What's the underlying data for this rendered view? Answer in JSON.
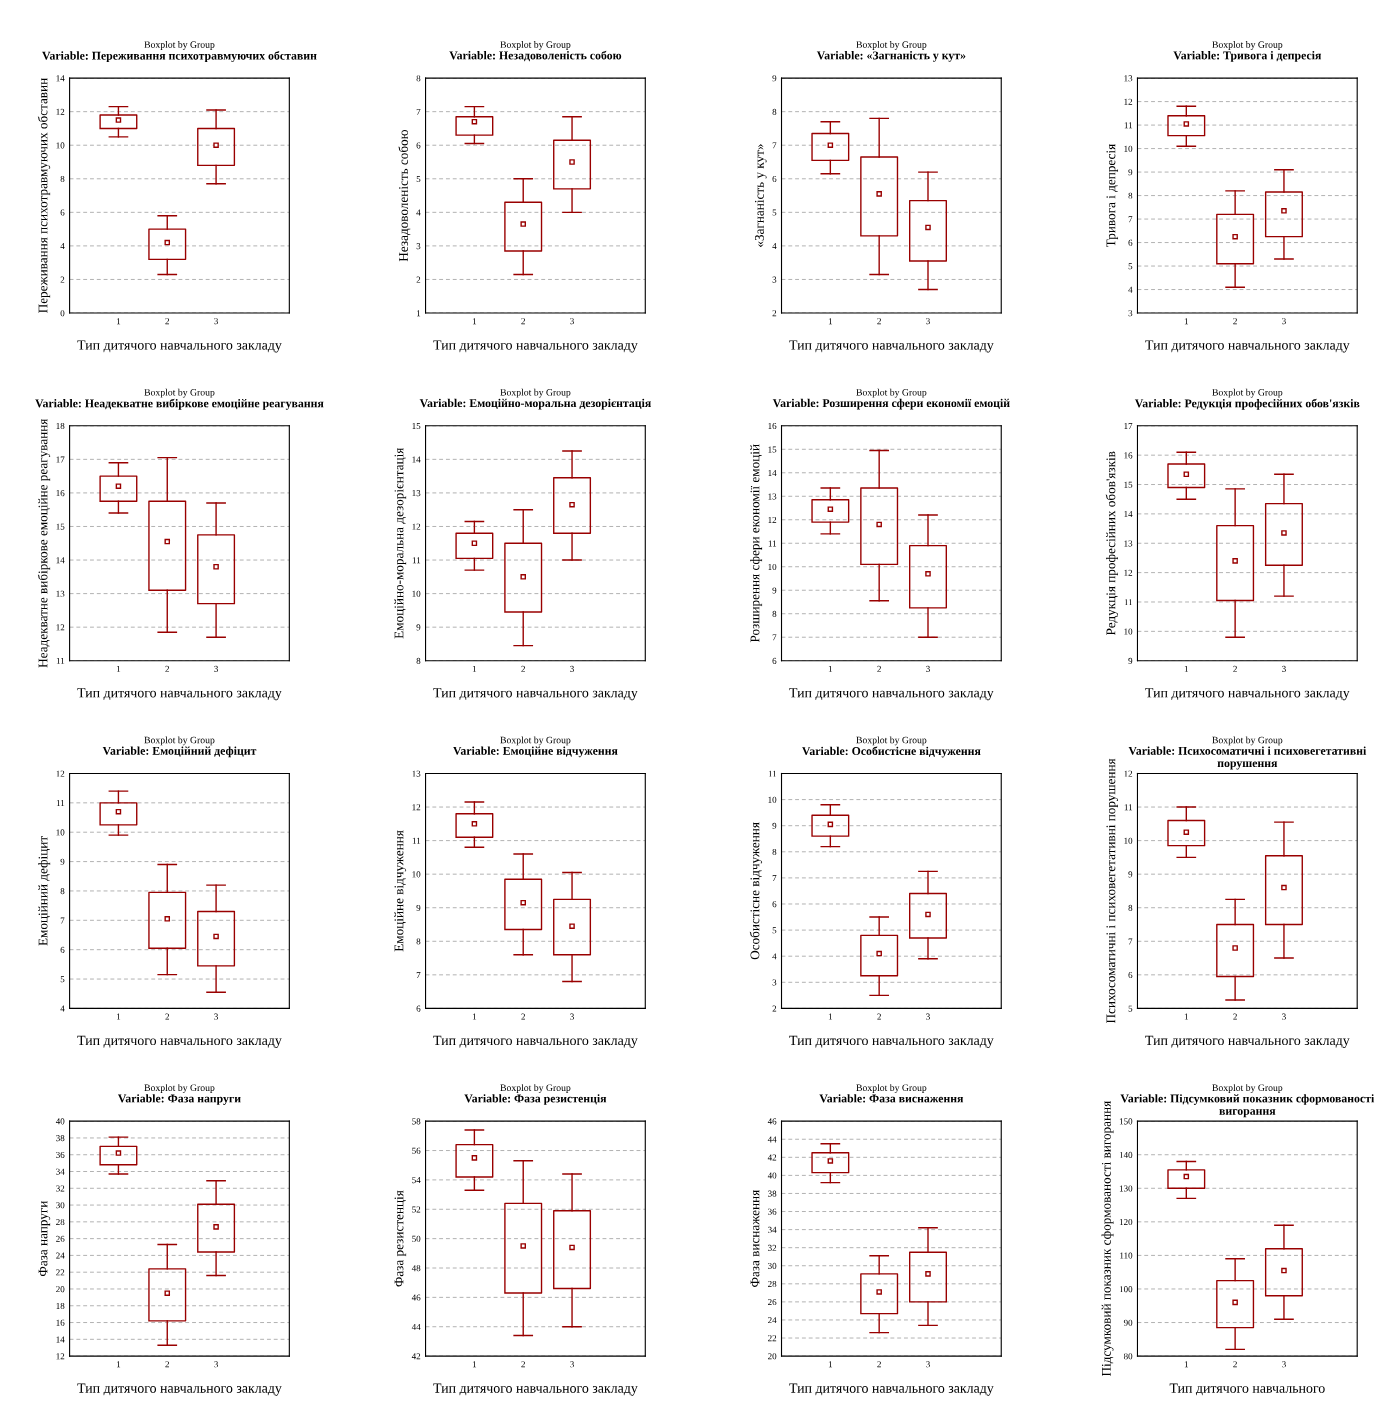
{
  "chart_data": [
    {
      "type": "box",
      "title": "Boxplot by Group",
      "subtitle": "Variable: Переживання психотравмуючих обставин",
      "xlabel": "Тип дитячого навчального закладу",
      "ylabel": "Переживання психотравмуючих обставин",
      "x": [
        1,
        2,
        3
      ],
      "xlim": [
        0,
        4.5
      ],
      "xticks": [
        1,
        2,
        3
      ],
      "ylim": [
        0,
        14
      ],
      "yticks": [
        0,
        2,
        4,
        6,
        8,
        10,
        12,
        14
      ],
      "grid": "y",
      "color": "#990000",
      "boxes": [
        {
          "low": 10.5,
          "q1": 11.0,
          "median": 11.5,
          "q3": 11.8,
          "high": 12.3
        },
        {
          "low": 2.3,
          "q1": 3.2,
          "median": 4.2,
          "q3": 5.0,
          "high": 5.8
        },
        {
          "low": 7.7,
          "q1": 8.8,
          "median": 10.0,
          "q3": 11.0,
          "high": 12.1
        }
      ]
    },
    {
      "type": "box",
      "title": "Boxplot by Group",
      "subtitle": "Variable: Незадоволеність собою",
      "xlabel": "Тип дитячого навчального закладу",
      "ylabel": "Незадоволеність собою",
      "x": [
        1,
        2,
        3
      ],
      "xlim": [
        0,
        4.5
      ],
      "xticks": [
        1,
        2,
        3
      ],
      "ylim": [
        1,
        8
      ],
      "yticks": [
        1,
        2,
        3,
        4,
        5,
        6,
        7,
        8
      ],
      "grid": "y",
      "color": "#990000",
      "boxes": [
        {
          "low": 6.05,
          "q1": 6.3,
          "median": 6.7,
          "q3": 6.85,
          "high": 7.15
        },
        {
          "low": 2.15,
          "q1": 2.85,
          "median": 3.65,
          "q3": 4.3,
          "high": 5.0
        },
        {
          "low": 4.0,
          "q1": 4.7,
          "median": 5.5,
          "q3": 6.15,
          "high": 6.85
        }
      ]
    },
    {
      "type": "box",
      "title": "Boxplot by Group",
      "subtitle": "Variable: «Загнаність у кут»",
      "xlabel": "Тип дитячого навчального закладу",
      "ylabel": "«Загнаність у кут»",
      "x": [
        1,
        2,
        3
      ],
      "xlim": [
        0,
        4.5
      ],
      "xticks": [
        1,
        2,
        3
      ],
      "ylim": [
        2,
        9
      ],
      "yticks": [
        2,
        3,
        4,
        5,
        6,
        7,
        8,
        9
      ],
      "grid": "y",
      "color": "#990000",
      "boxes": [
        {
          "low": 6.15,
          "q1": 6.55,
          "median": 7.0,
          "q3": 7.35,
          "high": 7.7
        },
        {
          "low": 3.15,
          "q1": 4.3,
          "median": 5.55,
          "q3": 6.65,
          "high": 7.8
        },
        {
          "low": 2.7,
          "q1": 3.55,
          "median": 4.55,
          "q3": 5.35,
          "high": 6.2
        }
      ]
    },
    {
      "type": "box",
      "title": "Boxplot by Group",
      "subtitle": "Variable: Тривога і депресія",
      "xlabel": "Тип дитячого навчального закладу",
      "ylabel": "Тривога і депресія",
      "x": [
        1,
        2,
        3
      ],
      "xlim": [
        0,
        4.5
      ],
      "xticks": [
        1,
        2,
        3
      ],
      "ylim": [
        3,
        13
      ],
      "yticks": [
        3,
        4,
        5,
        6,
        7,
        8,
        9,
        10,
        11,
        12,
        13
      ],
      "grid": "y",
      "color": "#990000",
      "boxes": [
        {
          "low": 10.1,
          "q1": 10.55,
          "median": 11.05,
          "q3": 11.4,
          "high": 11.8
        },
        {
          "low": 4.1,
          "q1": 5.1,
          "median": 6.25,
          "q3": 7.2,
          "high": 8.2
        },
        {
          "low": 5.3,
          "q1": 6.25,
          "median": 7.35,
          "q3": 8.15,
          "high": 9.1
        }
      ]
    },
    {
      "type": "box",
      "title": "Boxplot by Group",
      "subtitle": "Variable: Неадекватне вибіркове емоційне реагування",
      "xlabel": "Тип дитячого навчального закладу",
      "ylabel": "Неадекватне вибіркове емоційне реагування",
      "x": [
        1,
        2,
        3
      ],
      "xlim": [
        0,
        4.5
      ],
      "xticks": [
        1,
        2,
        3
      ],
      "ylim": [
        11,
        18
      ],
      "yticks": [
        11,
        12,
        13,
        14,
        15,
        16,
        17,
        18
      ],
      "grid": "y",
      "color": "#990000",
      "boxes": [
        {
          "low": 15.4,
          "q1": 15.75,
          "median": 16.2,
          "q3": 16.5,
          "high": 16.9
        },
        {
          "low": 11.85,
          "q1": 13.1,
          "median": 14.55,
          "q3": 15.75,
          "high": 17.05
        },
        {
          "low": 11.7,
          "q1": 12.7,
          "median": 13.8,
          "q3": 14.75,
          "high": 15.7
        }
      ]
    },
    {
      "type": "box",
      "title": "Boxplot by Group",
      "subtitle": "Variable: Емоційно-моральна дезорієнтація",
      "xlabel": "Тип дитячого навчального закладу",
      "ylabel": "Емоційно-моральна дезорієнтація",
      "x": [
        1,
        2,
        3
      ],
      "xlim": [
        0,
        4.5
      ],
      "xticks": [
        1,
        2,
        3
      ],
      "ylim": [
        8,
        15
      ],
      "yticks": [
        8,
        9,
        10,
        11,
        12,
        13,
        14,
        15
      ],
      "grid": "y",
      "color": "#990000",
      "boxes": [
        {
          "low": 10.7,
          "q1": 11.05,
          "median": 11.5,
          "q3": 11.8,
          "high": 12.15
        },
        {
          "low": 8.45,
          "q1": 9.45,
          "median": 10.5,
          "q3": 11.5,
          "high": 12.5
        },
        {
          "low": 11.0,
          "q1": 11.8,
          "median": 12.65,
          "q3": 13.45,
          "high": 14.25
        }
      ]
    },
    {
      "type": "box",
      "title": "Boxplot by Group",
      "subtitle": "Variable: Розширення сфери економії емоцій",
      "xlabel": "Тип дитячого навчального закладу",
      "ylabel": "Розширення сфери економії емоцій",
      "x": [
        1,
        2,
        3
      ],
      "xlim": [
        0,
        4.5
      ],
      "xticks": [
        1,
        2,
        3
      ],
      "ylim": [
        6,
        16
      ],
      "yticks": [
        6,
        7,
        8,
        9,
        10,
        11,
        12,
        13,
        14,
        15,
        16
      ],
      "grid": "y",
      "color": "#990000",
      "boxes": [
        {
          "low": 11.4,
          "q1": 11.9,
          "median": 12.45,
          "q3": 12.85,
          "high": 13.35
        },
        {
          "low": 8.55,
          "q1": 10.1,
          "median": 11.8,
          "q3": 13.35,
          "high": 14.95
        },
        {
          "low": 7.0,
          "q1": 8.25,
          "median": 9.7,
          "q3": 10.9,
          "high": 12.2
        }
      ]
    },
    {
      "type": "box",
      "title": "Boxplot by Group",
      "subtitle": "Variable: Редукція професійних обов'язків",
      "xlabel": "Тип дитячого навчального закладу",
      "ylabel": "Редукція професійних обов'язків",
      "x": [
        1,
        2,
        3
      ],
      "xlim": [
        0,
        4.5
      ],
      "xticks": [
        1,
        2,
        3
      ],
      "ylim": [
        9,
        17
      ],
      "yticks": [
        9,
        10,
        11,
        12,
        13,
        14,
        15,
        16,
        17
      ],
      "grid": "y",
      "color": "#990000",
      "boxes": [
        {
          "low": 14.5,
          "q1": 14.9,
          "median": 15.35,
          "q3": 15.7,
          "high": 16.1
        },
        {
          "low": 9.8,
          "q1": 11.05,
          "median": 12.4,
          "q3": 13.6,
          "high": 14.85
        },
        {
          "low": 11.2,
          "q1": 12.25,
          "median": 13.35,
          "q3": 14.35,
          "high": 15.35
        }
      ]
    },
    {
      "type": "box",
      "title": "Boxplot by Group",
      "subtitle": "Variable: Емоційний дефіцит",
      "xlabel": "Тип дитячого навчального закладу",
      "ylabel": "Емоційний дефіцит",
      "x": [
        1,
        2,
        3
      ],
      "xlim": [
        0,
        4.5
      ],
      "xticks": [
        1,
        2,
        3
      ],
      "ylim": [
        4,
        12
      ],
      "yticks": [
        4,
        5,
        6,
        7,
        8,
        9,
        10,
        11,
        12
      ],
      "grid": "y",
      "color": "#990000",
      "boxes": [
        {
          "low": 9.9,
          "q1": 10.25,
          "median": 10.7,
          "q3": 11.0,
          "high": 11.4
        },
        {
          "low": 5.15,
          "q1": 6.05,
          "median": 7.05,
          "q3": 7.95,
          "high": 8.9
        },
        {
          "low": 4.55,
          "q1": 5.45,
          "median": 6.45,
          "q3": 7.3,
          "high": 8.2
        }
      ]
    },
    {
      "type": "box",
      "title": "Boxplot by Group",
      "subtitle": "Variable: Емоційне відчуження",
      "xlabel": "Тип дитячого навчального закладу",
      "ylabel": "Емоційне відчуження",
      "x": [
        1,
        2,
        3
      ],
      "xlim": [
        0,
        4.5
      ],
      "xticks": [
        1,
        2,
        3
      ],
      "ylim": [
        6,
        13
      ],
      "yticks": [
        6,
        7,
        8,
        9,
        10,
        11,
        12,
        13
      ],
      "grid": "y",
      "color": "#990000",
      "boxes": [
        {
          "low": 10.8,
          "q1": 11.1,
          "median": 11.5,
          "q3": 11.8,
          "high": 12.15
        },
        {
          "low": 7.6,
          "q1": 8.35,
          "median": 9.15,
          "q3": 9.85,
          "high": 10.6
        },
        {
          "low": 6.8,
          "q1": 7.6,
          "median": 8.45,
          "q3": 9.25,
          "high": 10.05
        }
      ]
    },
    {
      "type": "box",
      "title": "Boxplot by Group",
      "subtitle": "Variable: Особистісне відчуження",
      "xlabel": "Тип дитячого навчального закладу",
      "ylabel": "Особистісне відчуження",
      "x": [
        1,
        2,
        3
      ],
      "xlim": [
        0,
        4.5
      ],
      "xticks": [
        1,
        2,
        3
      ],
      "ylim": [
        2,
        11
      ],
      "yticks": [
        2,
        3,
        4,
        5,
        6,
        7,
        8,
        9,
        10,
        11
      ],
      "grid": "y",
      "color": "#990000",
      "boxes": [
        {
          "low": 8.2,
          "q1": 8.6,
          "median": 9.05,
          "q3": 9.4,
          "high": 9.8
        },
        {
          "low": 2.5,
          "q1": 3.25,
          "median": 4.1,
          "q3": 4.8,
          "high": 5.5
        },
        {
          "low": 3.9,
          "q1": 4.7,
          "median": 5.6,
          "q3": 6.4,
          "high": 7.25
        }
      ]
    },
    {
      "type": "box",
      "title": "Boxplot by Group",
      "subtitle": "Variable: Психосоматичні і психовегетативні порушення",
      "xlabel": "Тип дитячого навчального закладу",
      "ylabel": "Психосоматичні і психовегетативні порушення",
      "x": [
        1,
        2,
        3
      ],
      "xlim": [
        0,
        4.5
      ],
      "xticks": [
        1,
        2,
        3
      ],
      "ylim": [
        5,
        12
      ],
      "yticks": [
        5,
        6,
        7,
        8,
        9,
        10,
        11,
        12
      ],
      "grid": "y",
      "color": "#990000",
      "boxes": [
        {
          "low": 9.5,
          "q1": 9.85,
          "median": 10.25,
          "q3": 10.6,
          "high": 11.0
        },
        {
          "low": 5.25,
          "q1": 5.95,
          "median": 6.8,
          "q3": 7.5,
          "high": 8.25
        },
        {
          "low": 6.5,
          "q1": 7.5,
          "median": 8.6,
          "q3": 9.55,
          "high": 10.55
        }
      ]
    },
    {
      "type": "box",
      "title": "Boxplot by Group",
      "subtitle": "Variable: Фаза напруги",
      "xlabel": "Тип дитячого навчального закладу",
      "ylabel": "Фаза напруги",
      "x": [
        1,
        2,
        3
      ],
      "xlim": [
        0,
        4.5
      ],
      "xticks": [
        1,
        2,
        3
      ],
      "ylim": [
        12,
        40
      ],
      "yticks": [
        12,
        14,
        16,
        18,
        20,
        22,
        24,
        26,
        28,
        30,
        32,
        34,
        36,
        38,
        40
      ],
      "grid": "y",
      "color": "#990000",
      "boxes": [
        {
          "low": 33.7,
          "q1": 34.8,
          "median": 36.2,
          "q3": 37.0,
          "high": 38.1
        },
        {
          "low": 13.3,
          "q1": 16.2,
          "median": 19.5,
          "q3": 22.4,
          "high": 25.3
        },
        {
          "low": 21.6,
          "q1": 24.4,
          "median": 27.4,
          "q3": 30.1,
          "high": 32.9
        }
      ]
    },
    {
      "type": "box",
      "title": "Boxplot by Group",
      "subtitle": "Variable: Фаза резистенція",
      "xlabel": "Тип дитячого навчального закладу",
      "ylabel": "Фаза резистенція",
      "x": [
        1,
        2,
        3
      ],
      "xlim": [
        0,
        4.5
      ],
      "xticks": [
        1,
        2,
        3
      ],
      "ylim": [
        42,
        58
      ],
      "yticks": [
        42,
        44,
        46,
        48,
        50,
        52,
        54,
        56,
        58
      ],
      "grid": "y",
      "color": "#990000",
      "boxes": [
        {
          "low": 53.3,
          "q1": 54.2,
          "median": 55.5,
          "q3": 56.4,
          "high": 57.4
        },
        {
          "low": 43.4,
          "q1": 46.3,
          "median": 49.5,
          "q3": 52.4,
          "high": 55.3
        },
        {
          "low": 44.0,
          "q1": 46.6,
          "median": 49.4,
          "q3": 51.9,
          "high": 54.4
        }
      ]
    },
    {
      "type": "box",
      "title": "Boxplot by Group",
      "subtitle": "Variable: Фаза виснаження",
      "xlabel": "Тип дитячого навчального закладу",
      "ylabel": "Фаза виснаження",
      "x": [
        1,
        2,
        3
      ],
      "xlim": [
        0,
        4.5
      ],
      "xticks": [
        1,
        2,
        3
      ],
      "ylim": [
        20,
        46
      ],
      "yticks": [
        20,
        22,
        24,
        26,
        28,
        30,
        32,
        34,
        36,
        38,
        40,
        42,
        44,
        46
      ],
      "grid": "y",
      "color": "#990000",
      "boxes": [
        {
          "low": 39.2,
          "q1": 40.3,
          "median": 41.6,
          "q3": 42.5,
          "high": 43.5
        },
        {
          "low": 22.6,
          "q1": 24.7,
          "median": 27.1,
          "q3": 29.1,
          "high": 31.1
        },
        {
          "low": 23.4,
          "q1": 26.0,
          "median": 29.1,
          "q3": 31.5,
          "high": 34.2
        }
      ]
    },
    {
      "type": "box",
      "title": "Boxplot by Group",
      "subtitle": "Variable: Підсумковий показник сформованості вигорання",
      "xlabel": "Тип дитячого навчального",
      "ylabel": "Підсумковий показник сформованості вигорання",
      "x": [
        1,
        2,
        3
      ],
      "xlim": [
        0,
        4.5
      ],
      "xticks": [
        1,
        2,
        3
      ],
      "ylim": [
        80,
        150
      ],
      "yticks": [
        80,
        90,
        100,
        110,
        120,
        130,
        140,
        150
      ],
      "grid": "y",
      "color": "#990000",
      "boxes": [
        {
          "low": 127,
          "q1": 130,
          "median": 133.5,
          "q3": 135.5,
          "high": 138
        },
        {
          "low": 82,
          "q1": 88.5,
          "median": 96,
          "q3": 102.5,
          "high": 109
        },
        {
          "low": 91,
          "q1": 98,
          "median": 105.5,
          "q3": 112,
          "high": 119
        }
      ]
    }
  ]
}
